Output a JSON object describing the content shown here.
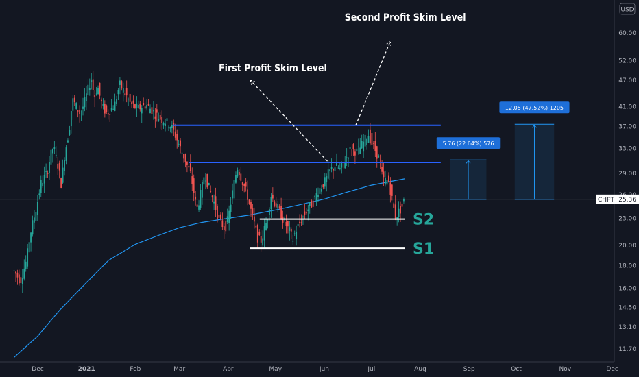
{
  "chart_data": {
    "type": "candlestick",
    "symbol": "CHPT",
    "currency": "USD",
    "last_price": "25.36",
    "y_scale": "log",
    "ylim": [
      11.2,
      72
    ],
    "y_ticks": [
      "60.00",
      "52.00",
      "47.00",
      "41.00",
      "37.00",
      "33.00",
      "29.00",
      "26.00",
      "23.00",
      "20.00",
      "18.00",
      "16.00",
      "14.50",
      "13.10",
      "11.70"
    ],
    "x_ticks": [
      {
        "label": "Dec",
        "date": "2020-12-01"
      },
      {
        "label": "2021",
        "date": "2021-01-01",
        "bold": true
      },
      {
        "label": "Feb",
        "date": "2021-02-01"
      },
      {
        "label": "Mar",
        "date": "2021-03-01"
      },
      {
        "label": "Apr",
        "date": "2021-04-01"
      },
      {
        "label": "May",
        "date": "2021-05-01"
      },
      {
        "label": "Jun",
        "date": "2021-06-01"
      },
      {
        "label": "Jul",
        "date": "2021-07-01"
      },
      {
        "label": "Aug",
        "date": "2021-08-01"
      },
      {
        "label": "Sep",
        "date": "2021-09-01"
      },
      {
        "label": "Oct",
        "date": "2021-10-01"
      },
      {
        "label": "Nov",
        "date": "2021-11-01"
      },
      {
        "label": "Dec",
        "date": "2021-12-01"
      }
    ],
    "close_path": [
      [
        "2020-11-16",
        17.5
      ],
      [
        "2020-11-20",
        16.6
      ],
      [
        "2020-11-24",
        18.6
      ],
      [
        "2020-11-26",
        21.0
      ],
      [
        "2020-11-30",
        24.2
      ],
      [
        "2020-12-03",
        27.5
      ],
      [
        "2020-12-07",
        29.2
      ],
      [
        "2020-12-09",
        31.6
      ],
      [
        "2020-12-11",
        33.4
      ],
      [
        "2020-12-14",
        30.0
      ],
      [
        "2020-12-16",
        27.4
      ],
      [
        "2020-12-18",
        31.8
      ],
      [
        "2020-12-21",
        36.5
      ],
      [
        "2020-12-23",
        42.5
      ],
      [
        "2020-12-28",
        39.5
      ],
      [
        "2020-12-30",
        41.2
      ],
      [
        "2021-01-04",
        47.4
      ],
      [
        "2021-01-06",
        43.0
      ],
      [
        "2021-01-08",
        45.5
      ],
      [
        "2021-01-11",
        41.0
      ],
      [
        "2021-01-14",
        39.5
      ],
      [
        "2021-01-19",
        41.5
      ],
      [
        "2021-01-22",
        46.0
      ],
      [
        "2021-01-26",
        43.5
      ],
      [
        "2021-01-29",
        41.5
      ],
      [
        "2021-02-03",
        40.6
      ],
      [
        "2021-02-08",
        41.4
      ],
      [
        "2021-02-12",
        40.0
      ],
      [
        "2021-02-17",
        38.5
      ],
      [
        "2021-02-22",
        37.6
      ],
      [
        "2021-02-25",
        36.4
      ],
      [
        "2021-03-01",
        33.5
      ],
      [
        "2021-03-04",
        31.5
      ],
      [
        "2021-03-08",
        29.0
      ],
      [
        "2021-03-10",
        26.5
      ],
      [
        "2021-03-12",
        24.0
      ],
      [
        "2021-03-15",
        26.5
      ],
      [
        "2021-03-17",
        29.2
      ],
      [
        "2021-03-19",
        27.4
      ],
      [
        "2021-03-23",
        25.0
      ],
      [
        "2021-03-26",
        22.8
      ],
      [
        "2021-03-30",
        21.8
      ],
      [
        "2021-04-01",
        23.0
      ],
      [
        "2021-04-05",
        28.0
      ],
      [
        "2021-04-07",
        30.0
      ],
      [
        "2021-04-09",
        28.5
      ],
      [
        "2021-04-13",
        26.0
      ],
      [
        "2021-04-16",
        23.5
      ],
      [
        "2021-04-20",
        20.6
      ],
      [
        "2021-04-22",
        20.5
      ],
      [
        "2021-04-26",
        23.0
      ],
      [
        "2021-04-28",
        26.0
      ],
      [
        "2021-05-03",
        24.0
      ],
      [
        "2021-05-06",
        22.8
      ],
      [
        "2021-05-10",
        21.5
      ],
      [
        "2021-05-12",
        20.6
      ],
      [
        "2021-05-14",
        21.6
      ],
      [
        "2021-05-18",
        23.0
      ],
      [
        "2021-05-21",
        24.0
      ],
      [
        "2021-05-25",
        25.0
      ],
      [
        "2021-05-28",
        26.5
      ],
      [
        "2021-06-02",
        28.0
      ],
      [
        "2021-06-04",
        29.2
      ],
      [
        "2021-06-08",
        30.2
      ],
      [
        "2021-06-11",
        29.6
      ],
      [
        "2021-06-15",
        31.4
      ],
      [
        "2021-06-18",
        33.0
      ],
      [
        "2021-06-22",
        32.4
      ],
      [
        "2021-06-25",
        33.6
      ],
      [
        "2021-06-29",
        35.6
      ],
      [
        "2021-07-01",
        34.0
      ],
      [
        "2021-07-06",
        31.2
      ],
      [
        "2021-07-08",
        28.2
      ],
      [
        "2021-07-12",
        27.8
      ],
      [
        "2021-07-14",
        25.5
      ],
      [
        "2021-07-16",
        23.2
      ],
      [
        "2021-07-20",
        24.2
      ],
      [
        "2021-07-22",
        25.36
      ]
    ],
    "series": [
      {
        "name": "Moving average",
        "color": "#2196f3",
        "values": [
          [
            "2020-11-16",
            11.2
          ],
          [
            "2020-12-01",
            12.5
          ],
          [
            "2020-12-15",
            14.3
          ],
          [
            "2021-01-01",
            16.5
          ],
          [
            "2021-01-15",
            18.5
          ],
          [
            "2021-02-01",
            20.1
          ],
          [
            "2021-02-15",
            21.0
          ],
          [
            "2021-03-01",
            21.9
          ],
          [
            "2021-03-15",
            22.5
          ],
          [
            "2021-04-01",
            23.0
          ],
          [
            "2021-04-15",
            23.4
          ],
          [
            "2021-05-01",
            24.0
          ],
          [
            "2021-05-15",
            24.6
          ],
          [
            "2021-06-01",
            25.4
          ],
          [
            "2021-06-15",
            26.3
          ],
          [
            "2021-07-01",
            27.3
          ],
          [
            "2021-07-15",
            27.9
          ],
          [
            "2021-07-22",
            28.2
          ]
        ]
      }
    ],
    "levels": [
      {
        "kind": "resistance",
        "color": "#2962ff",
        "price": 37.2,
        "from": "2021-02-25",
        "to": "2021-08-14"
      },
      {
        "kind": "resistance",
        "color": "#2962ff",
        "price": 30.7,
        "from": "2021-03-07",
        "to": "2021-08-14"
      },
      {
        "kind": "support",
        "label": "S2",
        "color": "#ffffff",
        "price": 22.9,
        "from": "2021-04-21",
        "to": "2021-07-22"
      },
      {
        "kind": "support",
        "label": "S1",
        "color": "#ffffff",
        "price": 19.7,
        "from": "2021-04-15",
        "to": "2021-07-22"
      }
    ],
    "targets": [
      {
        "label": "5.76 (22.64%) 576",
        "from": "2021-08-20",
        "to": "2021-09-12",
        "low": 25.36,
        "high": 31.1
      },
      {
        "label": "12.05 (47.52%) 1205",
        "from": "2021-09-30",
        "to": "2021-10-25",
        "low": 25.36,
        "high": 37.4
      }
    ],
    "annotations": [
      {
        "text": "First Profit Skim Level",
        "date": "2021-03-26",
        "price": 49.2
      },
      {
        "text": "Second Profit Skim Level",
        "date": "2021-06-14",
        "price": 64.0
      }
    ]
  }
}
